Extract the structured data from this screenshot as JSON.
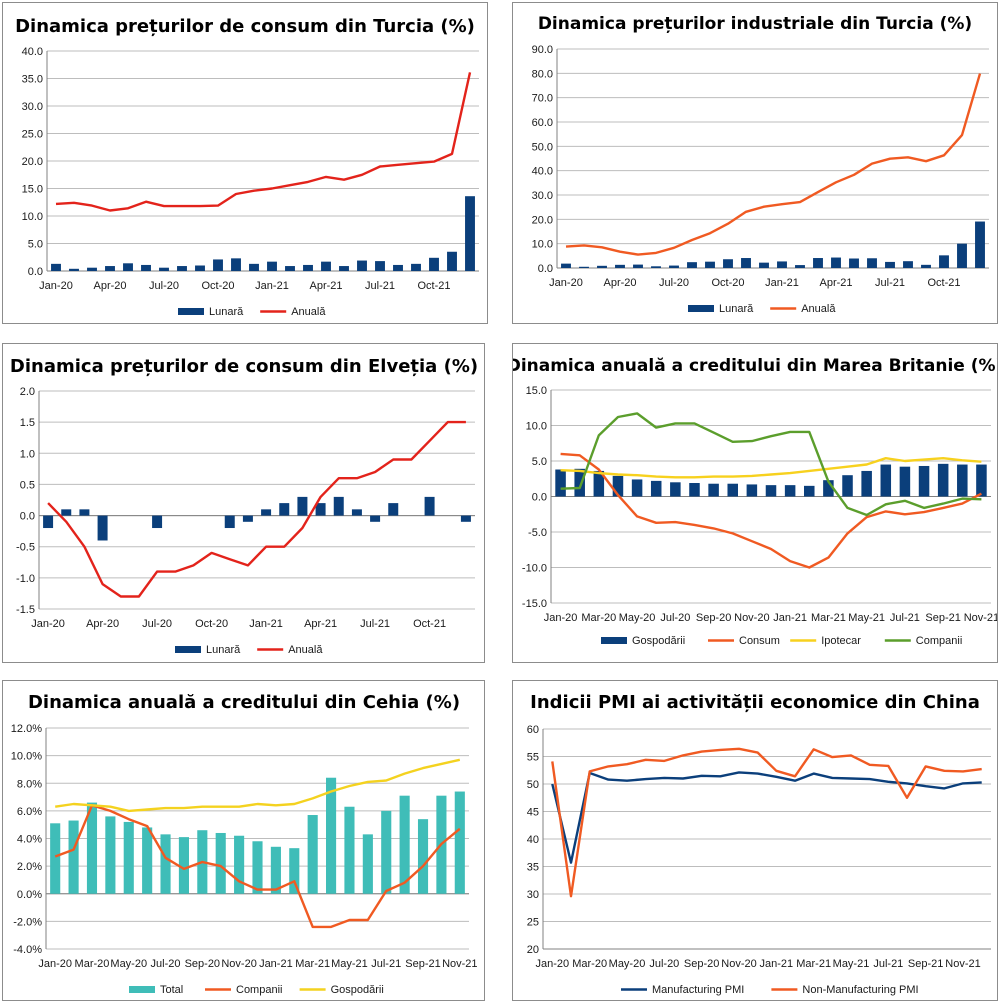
{
  "chart_data": [
    {
      "id": "tr-cpi",
      "type": "bar+line",
      "title": "Dinamica prețurilor de consum din Turcia (%)",
      "categories": [
        "Jan-20",
        "Feb-20",
        "Mar-20",
        "Apr-20",
        "May-20",
        "Jun-20",
        "Jul-20",
        "Aug-20",
        "Sep-20",
        "Oct-20",
        "Nov-20",
        "Dec-20",
        "Jan-21",
        "Feb-21",
        "Mar-21",
        "Apr-21",
        "May-21",
        "Jun-21",
        "Jul-21",
        "Aug-21",
        "Sep-21",
        "Oct-21",
        "Nov-21",
        "Dec-21"
      ],
      "x_tick_labels": [
        "Jan-20",
        "",
        "",
        "Apr-20",
        "",
        "",
        "Jul-20",
        "",
        "",
        "Oct-20",
        "",
        "",
        "Jan-21",
        "",
        "",
        "Apr-21",
        "",
        "",
        "Jul-21",
        "",
        "",
        "Oct-21",
        "",
        ""
      ],
      "ylim": [
        0,
        40
      ],
      "yticks": [
        0,
        5,
        10,
        15,
        20,
        25,
        30,
        35,
        40
      ],
      "ytick_labels": [
        "0.0",
        "5.0",
        "10.0",
        "15.0",
        "20.0",
        "25.0",
        "30.0",
        "35.0",
        "40.0"
      ],
      "grid": true,
      "series": [
        {
          "name": "Lunară",
          "kind": "bar",
          "color": "#0b3f7b",
          "values": [
            1.3,
            0.4,
            0.6,
            0.9,
            1.4,
            1.1,
            0.6,
            0.9,
            1.0,
            2.1,
            2.3,
            1.3,
            1.7,
            0.9,
            1.1,
            1.7,
            0.9,
            1.9,
            1.8,
            1.1,
            1.3,
            2.4,
            3.5,
            13.6
          ]
        },
        {
          "name": "Anuală",
          "kind": "line",
          "color": "#e3231b",
          "values": [
            12.2,
            12.4,
            11.9,
            11.0,
            11.4,
            12.6,
            11.8,
            11.8,
            11.8,
            11.9,
            14.0,
            14.6,
            15.0,
            15.6,
            16.2,
            17.1,
            16.6,
            17.5,
            19.0,
            19.3,
            19.6,
            19.9,
            21.3,
            36.1
          ]
        }
      ]
    },
    {
      "id": "tr-ppi",
      "type": "bar+line",
      "title": "Dinamica prețurilor industriale din Turcia (%)",
      "categories": [
        "Jan-20",
        "Feb-20",
        "Mar-20",
        "Apr-20",
        "May-20",
        "Jun-20",
        "Jul-20",
        "Aug-20",
        "Sep-20",
        "Oct-20",
        "Nov-20",
        "Dec-20",
        "Jan-21",
        "Feb-21",
        "Mar-21",
        "Apr-21",
        "May-21",
        "Jun-21",
        "Jul-21",
        "Aug-21",
        "Sep-21",
        "Oct-21",
        "Nov-21",
        "Dec-21"
      ],
      "x_tick_labels": [
        "Jan-20",
        "",
        "",
        "Apr-20",
        "",
        "",
        "Jul-20",
        "",
        "",
        "Oct-20",
        "",
        "",
        "Jan-21",
        "",
        "",
        "Apr-21",
        "",
        "",
        "Jul-21",
        "",
        "",
        "Oct-21",
        "",
        ""
      ],
      "ylim": [
        0,
        90
      ],
      "yticks": [
        0,
        10,
        20,
        30,
        40,
        50,
        60,
        70,
        80,
        90
      ],
      "ytick_labels": [
        "0.0",
        "10.0",
        "20.0",
        "30.0",
        "40.0",
        "50.0",
        "60.0",
        "70.0",
        "80.0",
        "90.0"
      ],
      "grid": true,
      "series": [
        {
          "name": "Lunară",
          "kind": "bar",
          "color": "#0b3f7b",
          "values": [
            1.8,
            0.5,
            0.9,
            1.3,
            1.4,
            0.7,
            1.0,
            2.4,
            2.6,
            3.6,
            4.1,
            2.2,
            2.7,
            1.2,
            4.1,
            4.3,
            3.9,
            4.0,
            2.5,
            2.8,
            1.3,
            5.2,
            10.0,
            19.1
          ]
        },
        {
          "name": "Anuală",
          "kind": "line",
          "color": "#f05a22",
          "values": [
            8.8,
            9.3,
            8.5,
            6.7,
            5.5,
            6.2,
            8.3,
            11.5,
            14.3,
            18.2,
            23.1,
            25.2,
            26.2,
            27.1,
            31.2,
            35.2,
            38.3,
            42.9,
            44.9,
            45.5,
            43.9,
            46.3,
            54.6,
            79.9
          ]
        }
      ]
    },
    {
      "id": "ch-cpi",
      "type": "bar+line",
      "title": "Dinamica prețurilor de consum din Elveția (%)",
      "categories": [
        "Jan-20",
        "Feb-20",
        "Mar-20",
        "Apr-20",
        "May-20",
        "Jun-20",
        "Jul-20",
        "Aug-20",
        "Sep-20",
        "Oct-20",
        "Nov-20",
        "Dec-20",
        "Jan-21",
        "Feb-21",
        "Mar-21",
        "Apr-21",
        "May-21",
        "Jun-21",
        "Jul-21",
        "Aug-21",
        "Sep-21",
        "Oct-21",
        "Nov-21",
        "Dec-21"
      ],
      "x_tick_labels": [
        "Jan-20",
        "",
        "",
        "Apr-20",
        "",
        "",
        "Jul-20",
        "",
        "",
        "Oct-20",
        "",
        "",
        "Jan-21",
        "",
        "",
        "Apr-21",
        "",
        "",
        "Jul-21",
        "",
        "",
        "Oct-21",
        "",
        ""
      ],
      "ylim": [
        -1.5,
        2.0
      ],
      "yticks": [
        -1.5,
        -1.0,
        -0.5,
        0,
        0.5,
        1.0,
        1.5,
        2.0
      ],
      "ytick_labels": [
        "-1.5",
        "-1.0",
        "-0.5",
        "0.0",
        "0.5",
        "1.0",
        "1.5",
        "2.0"
      ],
      "grid": true,
      "series": [
        {
          "name": "Lunară",
          "kind": "bar",
          "color": "#0b3f7b",
          "values": [
            -0.2,
            0.1,
            0.1,
            -0.4,
            0,
            0,
            -0.2,
            0,
            0,
            0,
            -0.2,
            -0.1,
            0.1,
            0.2,
            0.3,
            0.2,
            0.3,
            0.1,
            -0.1,
            0.2,
            0,
            0.3,
            0,
            -0.1
          ]
        },
        {
          "name": "Anuală",
          "kind": "line",
          "color": "#e3231b",
          "values": [
            0.2,
            -0.1,
            -0.5,
            -1.1,
            -1.3,
            -1.3,
            -0.9,
            -0.9,
            -0.8,
            -0.6,
            -0.7,
            -0.8,
            -0.5,
            -0.5,
            -0.2,
            0.3,
            0.6,
            0.6,
            0.7,
            0.9,
            0.9,
            1.2,
            1.5,
            1.5
          ]
        }
      ]
    },
    {
      "id": "uk-credit",
      "type": "bar+line",
      "title": "Dinamica anuală a creditului din Marea Britanie (%)",
      "categories": [
        "Jan-20",
        "Feb-20",
        "Mar-20",
        "Apr-20",
        "May-20",
        "Jun-20",
        "Jul-20",
        "Aug-20",
        "Sep-20",
        "Oct-20",
        "Nov-20",
        "Dec-20",
        "Jan-21",
        "Feb-21",
        "Mar-21",
        "Apr-21",
        "May-21",
        "Jun-21",
        "Jul-21",
        "Aug-21",
        "Sep-21",
        "Oct-21",
        "Nov-21"
      ],
      "x_tick_labels": [
        "Jan-20",
        "",
        "Mar-20",
        "",
        "May-20",
        "",
        "Jul-20",
        "",
        "Sep-20",
        "",
        "Nov-20",
        "",
        "Jan-21",
        "",
        "Mar-21",
        "",
        "May-21",
        "",
        "Jul-21",
        "",
        "Sep-21",
        "",
        "Nov-21"
      ],
      "ylim": [
        -15,
        15
      ],
      "yticks": [
        -15,
        -10,
        -5,
        0,
        5,
        10,
        15
      ],
      "ytick_labels": [
        "-15.0",
        "-10.0",
        "-5.0",
        "0.0",
        "5.0",
        "10.0",
        "15.0"
      ],
      "grid": true,
      "series": [
        {
          "name": "Gospodării",
          "kind": "bar",
          "color": "#0b3f7b",
          "values": [
            3.8,
            3.9,
            3.6,
            2.9,
            2.4,
            2.2,
            2.0,
            1.9,
            1.8,
            1.8,
            1.7,
            1.6,
            1.6,
            1.5,
            2.3,
            3.0,
            3.6,
            4.5,
            4.2,
            4.3,
            4.6,
            4.5,
            4.5
          ]
        },
        {
          "name": "Consum",
          "kind": "line",
          "color": "#f05a22",
          "values": [
            6.0,
            5.8,
            3.8,
            0.2,
            -2.8,
            -3.7,
            -3.6,
            -4.0,
            -4.5,
            -5.2,
            -6.3,
            -7.4,
            -9.1,
            -10.0,
            -8.6,
            -5.2,
            -2.9,
            -2.1,
            -2.5,
            -2.2,
            -1.6,
            -1.0,
            0.4
          ]
        },
        {
          "name": "Ipotecar",
          "kind": "line",
          "color": "#f7d11e",
          "values": [
            3.7,
            3.6,
            3.3,
            3.1,
            3.0,
            2.8,
            2.7,
            2.7,
            2.8,
            2.8,
            2.9,
            3.1,
            3.3,
            3.6,
            3.9,
            4.2,
            4.5,
            5.4,
            5.0,
            5.2,
            5.4,
            5.1,
            4.9
          ]
        },
        {
          "name": "Companii",
          "kind": "line",
          "color": "#5b9e2c",
          "values": [
            1.1,
            1.2,
            8.6,
            11.2,
            11.7,
            9.7,
            10.3,
            10.3,
            9.0,
            7.7,
            7.8,
            8.5,
            9.1,
            9.1,
            2.1,
            -1.6,
            -2.6,
            -1.1,
            -0.6,
            -1.6,
            -1.0,
            -0.3,
            -0.4
          ]
        }
      ]
    },
    {
      "id": "cz-credit",
      "type": "bar+line",
      "title": "Dinamica anuală a creditului din Cehia (%)",
      "categories": [
        "Jan-20",
        "Feb-20",
        "Mar-20",
        "Apr-20",
        "May-20",
        "Jun-20",
        "Jul-20",
        "Aug-20",
        "Sep-20",
        "Oct-20",
        "Nov-20",
        "Dec-20",
        "Jan-21",
        "Feb-21",
        "Mar-21",
        "Apr-21",
        "May-21",
        "Jun-21",
        "Jul-21",
        "Aug-21",
        "Sep-21",
        "Oct-21",
        "Nov-21"
      ],
      "x_tick_labels": [
        "Jan-20",
        "",
        "Mar-20",
        "",
        "May-20",
        "",
        "Jul-20",
        "",
        "Sep-20",
        "",
        "Nov-20",
        "",
        "Jan-21",
        "",
        "Mar-21",
        "",
        "May-21",
        "",
        "Jul-21",
        "",
        "Sep-21",
        "",
        "Nov-21"
      ],
      "ylim": [
        -4,
        12
      ],
      "yticks": [
        -4,
        -2,
        0,
        2,
        4,
        6,
        8,
        10,
        12
      ],
      "ytick_labels": [
        "-4.0%",
        "-2.0%",
        "0.0%",
        "2.0%",
        "4.0%",
        "6.0%",
        "8.0%",
        "10.0%",
        "12.0%"
      ],
      "grid": true,
      "series": [
        {
          "name": "Total",
          "kind": "bar",
          "color": "#3fbdb8",
          "values": [
            5.1,
            5.3,
            6.6,
            5.6,
            5.2,
            4.8,
            4.3,
            4.1,
            4.6,
            4.4,
            4.2,
            3.8,
            3.4,
            3.3,
            5.7,
            8.4,
            6.3,
            4.3,
            6.0,
            7.1,
            5.4,
            7.1,
            7.4
          ]
        },
        {
          "name": "Companii",
          "kind": "line",
          "color": "#f05a22",
          "values": [
            2.7,
            3.2,
            6.4,
            6.0,
            5.4,
            4.9,
            2.6,
            1.8,
            2.3,
            2.0,
            0.9,
            0.3,
            0.3,
            0.9,
            -2.4,
            -2.4,
            -1.9,
            -1.9,
            0.2,
            0.8,
            2.0,
            3.6,
            4.7
          ]
        },
        {
          "name": "Gospodării",
          "kind": "line",
          "color": "#f4d21f",
          "values": [
            6.3,
            6.5,
            6.4,
            6.3,
            6.0,
            6.1,
            6.2,
            6.2,
            6.3,
            6.3,
            6.3,
            6.5,
            6.4,
            6.5,
            6.9,
            7.4,
            7.8,
            8.1,
            8.2,
            8.7,
            9.1,
            9.4,
            9.7
          ]
        }
      ]
    },
    {
      "id": "cn-pmi",
      "type": "line",
      "title": "Indicii PMI ai activității economice din China",
      "categories": [
        "Jan-20",
        "Feb-20",
        "Mar-20",
        "Apr-20",
        "May-20",
        "Jun-20",
        "Jul-20",
        "Aug-20",
        "Sep-20",
        "Oct-20",
        "Nov-20",
        "Dec-20",
        "Jan-21",
        "Feb-21",
        "Mar-21",
        "Apr-21",
        "May-21",
        "Jun-21",
        "Jul-21",
        "Aug-21",
        "Sep-21",
        "Oct-21",
        "Nov-21",
        "Dec-21"
      ],
      "x_tick_labels": [
        "Jan-20",
        "",
        "Mar-20",
        "",
        "May-20",
        "",
        "Jul-20",
        "",
        "Sep-20",
        "",
        "Nov-20",
        "",
        "Jan-21",
        "",
        "Mar-21",
        "",
        "May-21",
        "",
        "Jul-21",
        "",
        "Sep-21",
        "",
        "Nov-21",
        ""
      ],
      "ylim": [
        20,
        60
      ],
      "yticks": [
        20,
        25,
        30,
        35,
        40,
        45,
        50,
        55,
        60
      ],
      "ytick_labels": [
        "20",
        "25",
        "30",
        "35",
        "40",
        "45",
        "50",
        "55",
        "60"
      ],
      "grid": true,
      "series": [
        {
          "name": "Manufacturing PMI",
          "kind": "line",
          "color": "#0b3f7b",
          "values": [
            50.0,
            35.7,
            52.0,
            50.8,
            50.6,
            50.9,
            51.1,
            51.0,
            51.5,
            51.4,
            52.1,
            51.9,
            51.3,
            50.6,
            51.9,
            51.1,
            51.0,
            50.9,
            50.4,
            50.1,
            49.6,
            49.2,
            50.1,
            50.3
          ]
        },
        {
          "name": "Non-Manufacturing PMI",
          "kind": "line",
          "color": "#f05a22",
          "values": [
            54.1,
            29.6,
            52.3,
            53.2,
            53.6,
            54.4,
            54.2,
            55.2,
            55.9,
            56.2,
            56.4,
            55.7,
            52.4,
            51.4,
            56.3,
            54.9,
            55.2,
            53.5,
            53.3,
            47.5,
            53.2,
            52.4,
            52.3,
            52.7
          ]
        }
      ]
    }
  ]
}
